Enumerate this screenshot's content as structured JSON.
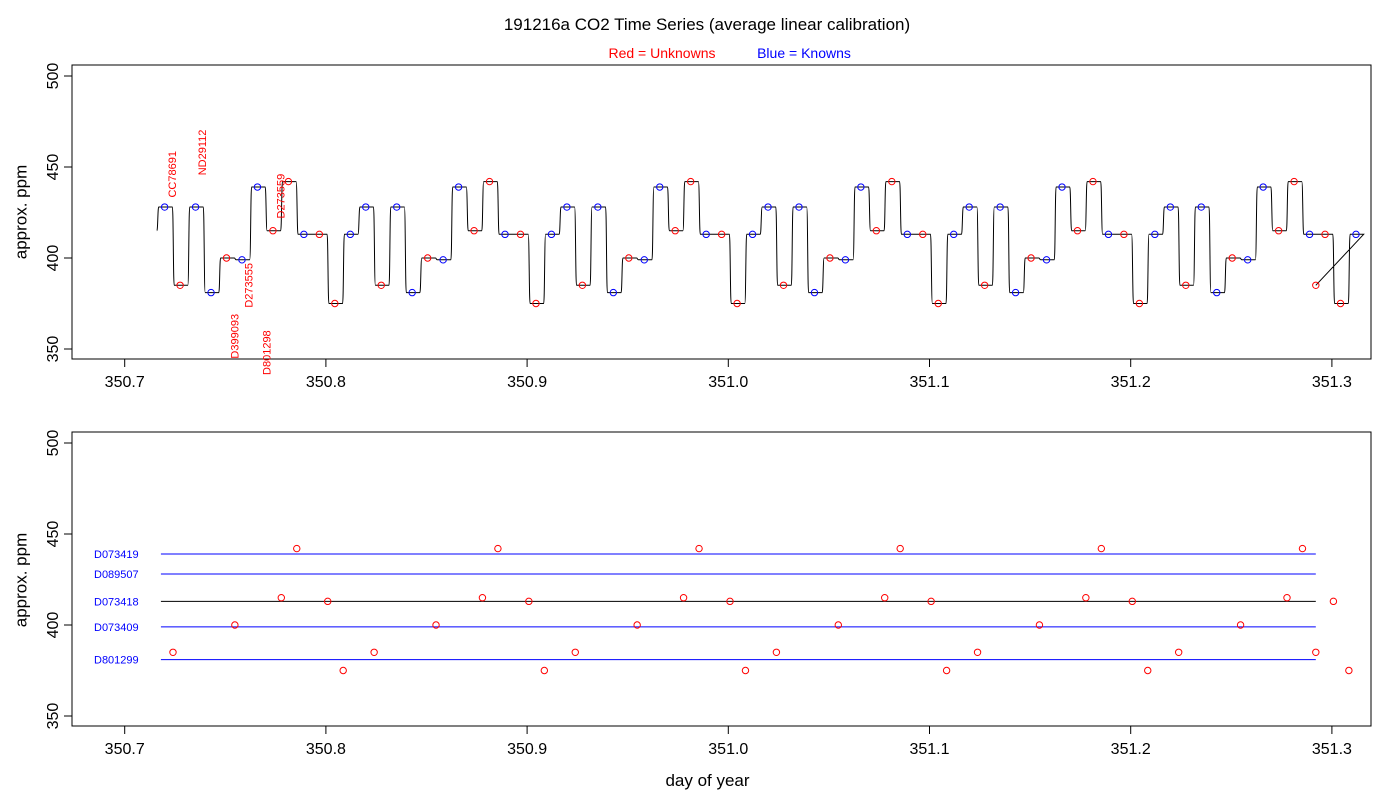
{
  "header": {
    "title": "191216a   CO2 Time Series (average linear calibration)",
    "legend_unknowns": "Red = Unknowns",
    "legend_knowns": "Blue = Knowns"
  },
  "colors": {
    "unknown": "#ff0000",
    "known": "#0000ff",
    "trace": "#000000",
    "axis": "#000000"
  },
  "chart_data": [
    {
      "type": "line",
      "title": "191216a   CO2 Time Series (average linear calibration)",
      "xlabel": "",
      "ylabel": "approx. ppm",
      "xlim": [
        350.7,
        351.3
      ],
      "ylim": [
        350,
        500
      ],
      "xticks": [
        350.7,
        350.8,
        350.9,
        351.0,
        351.1,
        351.2,
        351.3
      ],
      "xtick_labels": [
        "350.7",
        "350.8",
        "350.9",
        "351.0",
        "351.1",
        "351.2",
        "351.3"
      ],
      "yticks": [
        350,
        400,
        450,
        500
      ],
      "ytick_labels": [
        "350",
        "400",
        "450",
        "500"
      ],
      "legend": "top-center",
      "grid": false,
      "cycle_sequence": [
        {
          "id": "D089507",
          "kind": "known",
          "value": 428
        },
        {
          "id": "CC78691",
          "kind": "unknown",
          "value": 385
        },
        {
          "id": "D089507",
          "kind": "known",
          "value": 428
        },
        {
          "id": "D801299",
          "kind": "known",
          "value": 381
        },
        {
          "id": "ND29112",
          "kind": "unknown",
          "value": 400
        },
        {
          "id": "D073409",
          "kind": "known",
          "value": 399
        },
        {
          "id": "D073419",
          "kind": "known",
          "value": 439
        },
        {
          "id": "D399093",
          "kind": "unknown",
          "value": 415
        },
        {
          "id": "D273555",
          "kind": "unknown",
          "value": 442
        },
        {
          "id": "D073418",
          "kind": "known",
          "value": 413
        },
        {
          "id": "D801298",
          "kind": "unknown",
          "value": 413
        },
        {
          "id": "D273559",
          "kind": "unknown",
          "value": 375
        },
        {
          "id": "D073418",
          "kind": "known",
          "value": 413
        }
      ],
      "time_series": {
        "name": "CO2 trace",
        "start_x": 350.716,
        "start_value": 415,
        "step_x": 0.00769,
        "repeat_cycles": 6,
        "end_x": 351.292,
        "end_value": 385
      },
      "annotations": [
        {
          "text": "CC78691",
          "x": 350.724,
          "y": 446
        },
        {
          "text": "ND29112",
          "x": 350.739,
          "y": 458
        },
        {
          "text": "D399093",
          "x": 350.755,
          "y": 357
        },
        {
          "text": "D273555",
          "x": 350.762,
          "y": 385
        },
        {
          "text": "D801298",
          "x": 350.771,
          "y": 348
        },
        {
          "text": "D273559",
          "x": 350.778,
          "y": 434
        }
      ]
    },
    {
      "type": "scatter",
      "xlabel": "day of year",
      "ylabel": "approx. ppm",
      "xlim": [
        350.7,
        351.3
      ],
      "ylim": [
        350,
        500
      ],
      "xticks": [
        350.7,
        350.8,
        350.9,
        351.0,
        351.1,
        351.2,
        351.3
      ],
      "xtick_labels": [
        "350.7",
        "350.8",
        "350.9",
        "351.0",
        "351.1",
        "351.2",
        "351.3"
      ],
      "yticks": [
        350,
        400,
        450,
        500
      ],
      "ytick_labels": [
        "350",
        "400",
        "450",
        "500"
      ],
      "grid": false,
      "reference_lines": [
        {
          "name": "D073419",
          "value": 439,
          "color": "#0000ff"
        },
        {
          "name": "D089507",
          "value": 428,
          "color": "#0000ff"
        },
        {
          "name": "D073418",
          "value": 413,
          "color": "#000000"
        },
        {
          "name": "D073409",
          "value": 399,
          "color": "#0000ff"
        },
        {
          "name": "D801299",
          "value": 381,
          "color": "#0000ff"
        }
      ],
      "reference_x_range": [
        350.718,
        351.292
      ],
      "unknown_points": {
        "start_x": 350.724,
        "step_x": 0.00769,
        "cycle_values": [
          385,
          null,
          null,
          null,
          400,
          null,
          null,
          415,
          442,
          null,
          413,
          375,
          null
        ],
        "repeat_cycles": 6,
        "final_point": {
          "x": 351.292,
          "y": 385
        }
      }
    }
  ]
}
